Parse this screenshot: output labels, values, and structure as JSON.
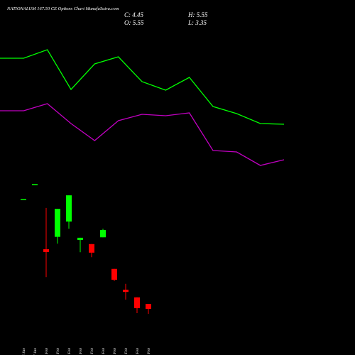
{
  "chart_data": {
    "type": "candlestick",
    "title": "NATIONALUM 167.50 CE Options Chart MunafaSutra.com",
    "ohlc_text": {
      "close": "C: 4.45",
      "high": "H: 5.55",
      "open": "O: 5.55",
      "low": "L: 3.35"
    },
    "categories": [
      "24 Jan",
      "27 Jan",
      "01 Feb",
      "02 Feb",
      "03 Feb",
      "05 Feb",
      "06 Feb",
      "09 Feb",
      "13 Feb",
      "16 Feb",
      "17 Feb",
      "18 Feb"
    ],
    "open": [
      28.8,
      32.1,
      17.66,
      20.4,
      23.8,
      19.7,
      18.8,
      20.3,
      13.3,
      8.7,
      7.0,
      5.55
    ],
    "high": [
      28.8,
      32.1,
      26.8,
      26.6,
      29.6,
      20.2,
      18.8,
      22.2,
      13.3,
      10.0,
      7.0,
      5.55
    ],
    "low": [
      28.8,
      32.1,
      11.5,
      18.9,
      22.2,
      17.0,
      15.9,
      20.3,
      10.6,
      6.5,
      3.5,
      3.35
    ],
    "close": [
      28.8,
      32.1,
      17.03,
      26.6,
      29.6,
      20.2,
      16.9,
      21.9,
      10.9,
      8.2,
      4.6,
      4.45
    ],
    "up_color": "#00ff00",
    "down_color": "#ff0000",
    "ylim": [
      0,
      40
    ],
    "lines": {
      "x": [
        0,
        1,
        2,
        3,
        4,
        5,
        6,
        7,
        8,
        9,
        10,
        11,
        12
      ],
      "xlim": [
        0,
        12
      ],
      "y2lim": [
        0,
        100
      ],
      "series": [
        {
          "color": "#00ff00",
          "axis": "y2",
          "values": [
            84,
            84,
            90,
            62,
            80,
            85,
            67.5,
            61.5,
            70.5,
            50,
            45,
            38,
            37.5
          ]
        },
        {
          "color": "#c000c0",
          "axis": "y2",
          "values": [
            47,
            47,
            52,
            38,
            26,
            40,
            44.5,
            43.5,
            45.5,
            19,
            18,
            8.5,
            12.5
          ]
        }
      ]
    }
  }
}
